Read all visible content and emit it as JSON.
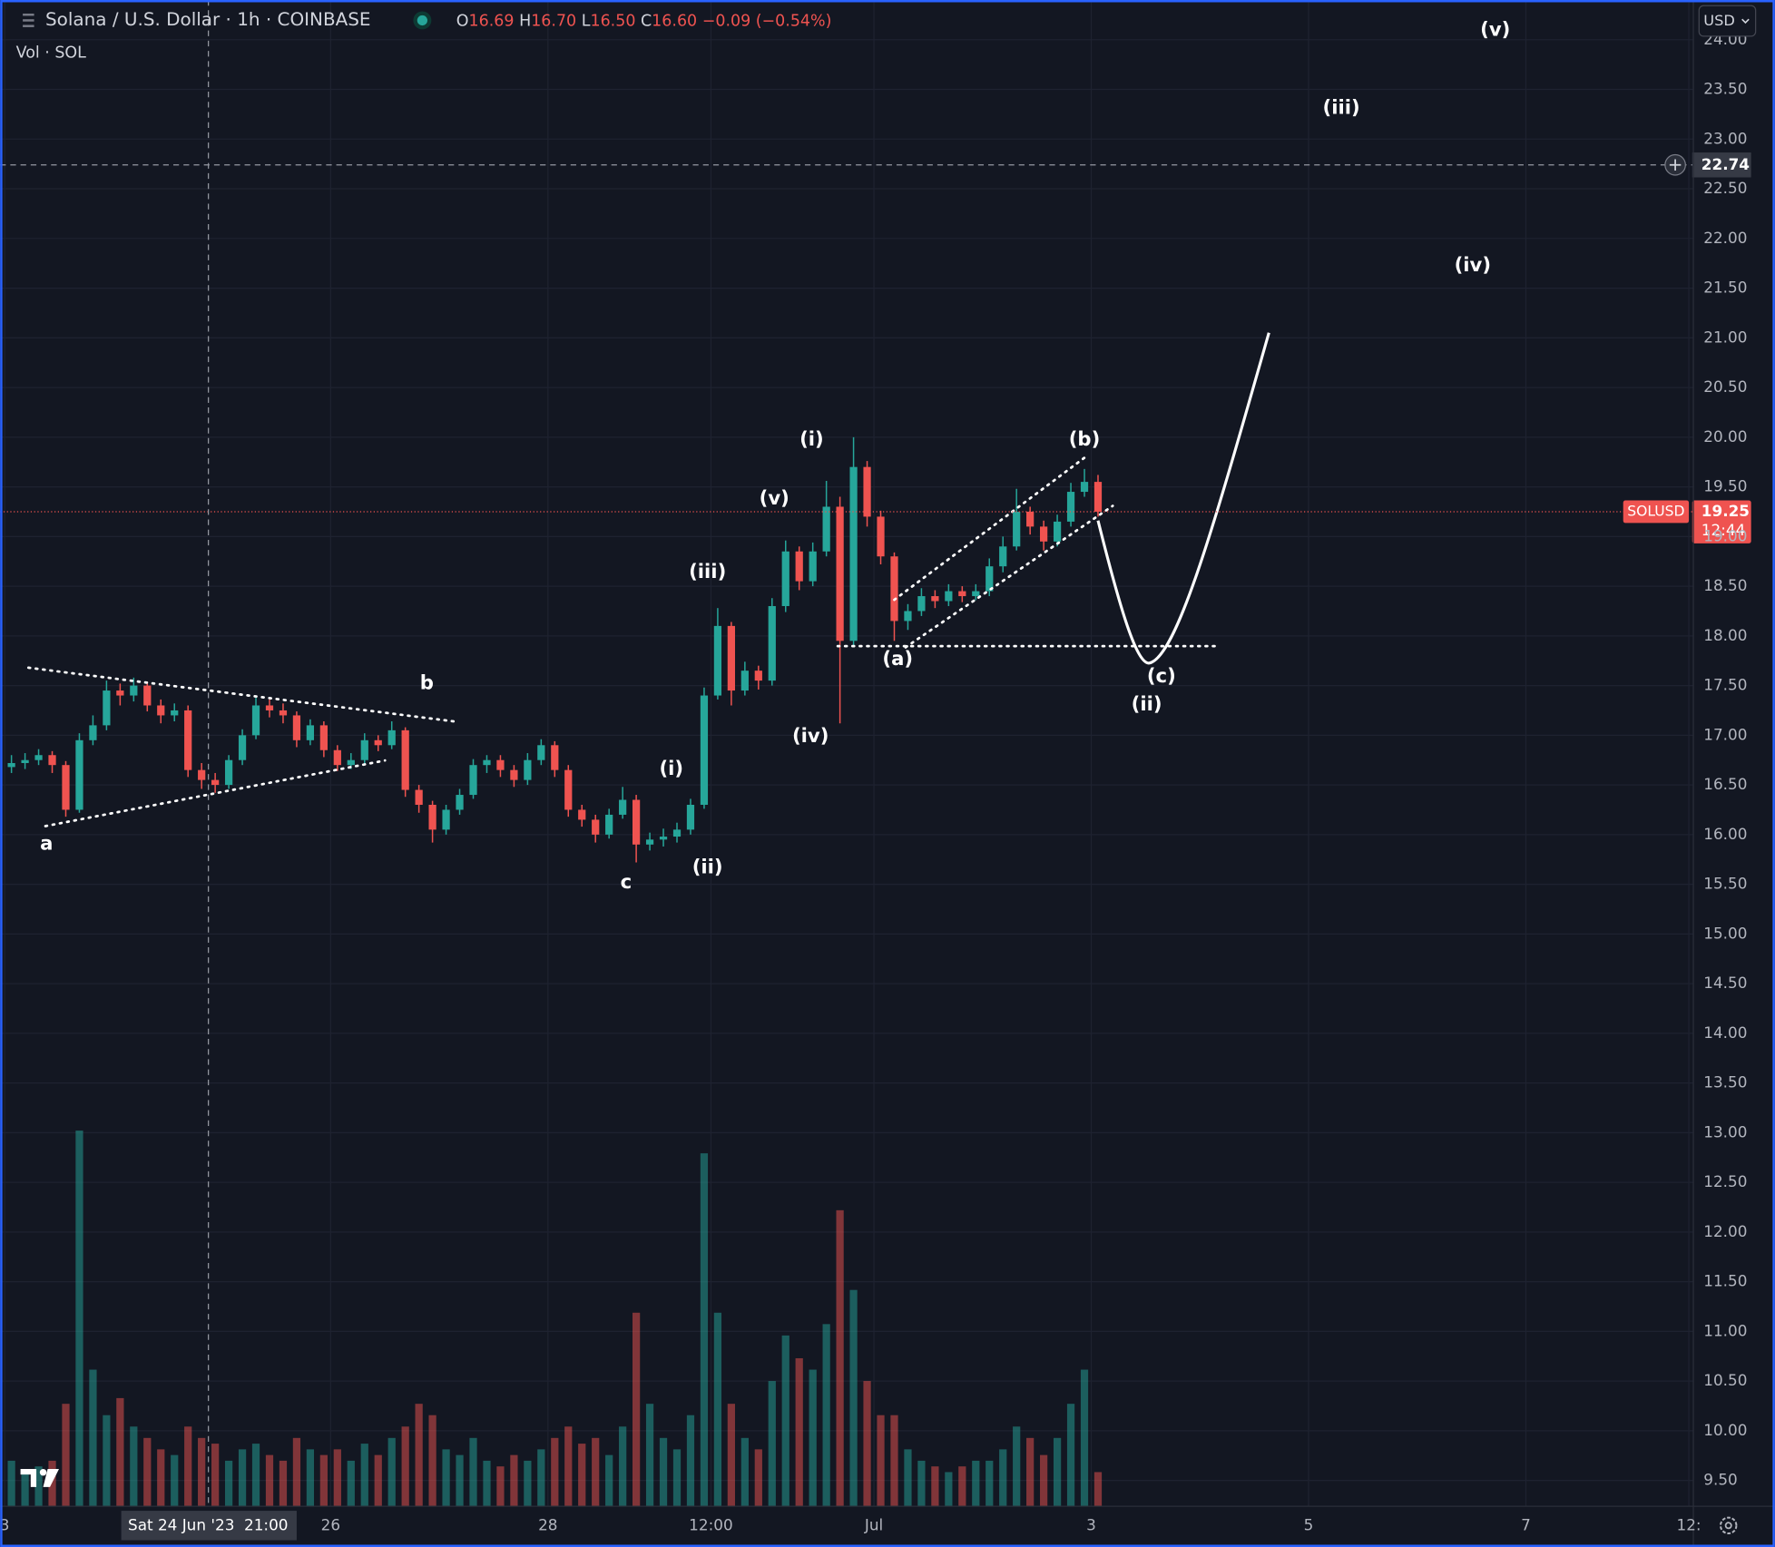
{
  "header": {
    "symbol": "Solana / U.S. Dollar · 1h · COINBASE",
    "o_label": "O",
    "open": "16.69",
    "h_label": "H",
    "high": "16.70",
    "l_label": "L",
    "low": "16.50",
    "c_label": "C",
    "close": "16.60",
    "change": "−0.09 (−0.54%)",
    "volume_label": "Vol · SOL",
    "currency": "USD"
  },
  "annotations": [
    "(v)",
    "(iii)",
    "(iv)",
    "(i)",
    "(b)",
    "(v)",
    "(iii)",
    "(a)",
    "(c)",
    "(ii)",
    "(iv)",
    "b",
    "(i)",
    "(ii)",
    "c",
    "a"
  ],
  "chart_data": {
    "type": "candlestick",
    "up_color": "#26a69a",
    "down_color": "#ef5350",
    "grid": true,
    "x": [
      1.5,
      4.5,
      7.5,
      10.5,
      13.5,
      16.5,
      19.5,
      22.5,
      25.5,
      28.5,
      31.5,
      34.5,
      37.5,
      40.5,
      43.5,
      46.5,
      49.5,
      52.5,
      55.5,
      58.5,
      61.5,
      64.5,
      67.5,
      70.5,
      73.5,
      76.5,
      79.5,
      82.5,
      85.5,
      88.5,
      91.5,
      94.5,
      97.5,
      100.5,
      103.5,
      106.5,
      109.5,
      112.5,
      115.5,
      118.5,
      121.5,
      124.5,
      127.5,
      130.5,
      133.5,
      136.5,
      139.5,
      142.5,
      145.5,
      148.5,
      151.5,
      154.5,
      157.5,
      160.5,
      163.5,
      166.5,
      169.5,
      172.5,
      175.5,
      178.5,
      181.5,
      184.5,
      187.5,
      190.5,
      193.5,
      196.5,
      199.5,
      202.5,
      205.5,
      208.5,
      211.5,
      214.5,
      217.5,
      220.5,
      223.5,
      226.5,
      229.5,
      232.5,
      235.5,
      238.5,
      241.5
    ],
    "open": [
      16.68,
      16.72,
      16.75,
      16.8,
      16.7,
      16.25,
      16.95,
      17.1,
      17.45,
      17.4,
      17.5,
      17.3,
      17.2,
      17.25,
      16.65,
      16.55,
      16.5,
      16.75,
      17.0,
      17.3,
      17.25,
      17.2,
      16.95,
      17.1,
      16.85,
      16.7,
      16.75,
      16.95,
      16.9,
      17.05,
      16.45,
      16.3,
      16.05,
      16.25,
      16.4,
      16.7,
      16.75,
      16.65,
      16.55,
      16.75,
      16.9,
      16.65,
      16.25,
      16.15,
      16.0,
      16.2,
      16.35,
      15.9,
      15.95,
      15.98,
      16.05,
      16.3,
      17.4,
      18.1,
      17.45,
      17.65,
      17.55,
      18.3,
      18.85,
      18.55,
      18.85,
      19.3,
      17.95,
      19.7,
      19.2,
      18.8,
      18.15,
      18.25,
      18.4,
      18.35,
      18.45,
      18.4,
      18.45,
      18.7,
      18.9,
      19.25,
      19.1,
      18.95,
      19.15,
      19.45,
      19.55
    ],
    "high": [
      16.8,
      16.82,
      16.86,
      16.84,
      16.74,
      17.02,
      17.2,
      17.55,
      17.52,
      17.58,
      17.54,
      17.36,
      17.32,
      17.3,
      16.72,
      16.62,
      16.8,
      17.06,
      17.38,
      17.36,
      17.32,
      17.24,
      17.16,
      17.14,
      16.9,
      16.82,
      17.02,
      17.0,
      17.14,
      17.08,
      16.5,
      16.34,
      16.3,
      16.46,
      16.76,
      16.8,
      16.8,
      16.7,
      16.82,
      16.96,
      16.94,
      16.7,
      16.3,
      16.2,
      16.26,
      16.48,
      16.4,
      16.02,
      16.06,
      16.12,
      16.36,
      17.48,
      18.28,
      18.14,
      17.74,
      17.7,
      18.38,
      18.96,
      18.9,
      18.94,
      19.56,
      19.4,
      20.0,
      19.76,
      19.26,
      18.84,
      18.32,
      18.48,
      18.46,
      18.52,
      18.5,
      18.52,
      18.78,
      19.0,
      19.48,
      19.3,
      19.16,
      19.22,
      19.54,
      19.68,
      19.62
    ],
    "low": [
      16.62,
      16.66,
      16.7,
      16.62,
      16.18,
      16.22,
      16.9,
      17.05,
      17.3,
      17.34,
      17.24,
      17.12,
      17.14,
      16.58,
      16.46,
      16.42,
      16.46,
      16.7,
      16.96,
      17.18,
      17.12,
      16.88,
      16.9,
      16.78,
      16.64,
      16.66,
      16.7,
      16.84,
      16.86,
      16.38,
      16.22,
      15.92,
      16.0,
      16.2,
      16.36,
      16.62,
      16.58,
      16.48,
      16.5,
      16.7,
      16.58,
      16.18,
      16.08,
      15.92,
      15.96,
      16.16,
      15.72,
      15.84,
      15.88,
      15.92,
      16.0,
      16.26,
      17.36,
      17.3,
      17.4,
      17.46,
      17.5,
      18.24,
      18.46,
      18.5,
      18.8,
      17.12,
      17.9,
      19.1,
      18.72,
      17.95,
      18.06,
      18.2,
      18.28,
      18.3,
      18.34,
      18.36,
      18.4,
      18.64,
      18.86,
      19.02,
      18.86,
      18.9,
      19.1,
      19.4,
      19.2
    ],
    "close": [
      16.72,
      16.75,
      16.8,
      16.7,
      16.25,
      16.95,
      17.1,
      17.45,
      17.4,
      17.5,
      17.3,
      17.2,
      17.25,
      16.65,
      16.55,
      16.5,
      16.75,
      17.0,
      17.3,
      17.25,
      17.2,
      16.95,
      17.1,
      16.85,
      16.7,
      16.75,
      16.95,
      16.9,
      17.05,
      16.45,
      16.3,
      16.05,
      16.25,
      16.4,
      16.7,
      16.75,
      16.65,
      16.55,
      16.75,
      16.9,
      16.65,
      16.25,
      16.15,
      16.0,
      16.2,
      16.35,
      15.9,
      15.95,
      15.98,
      16.05,
      16.3,
      17.4,
      18.1,
      17.45,
      17.65,
      17.55,
      18.3,
      18.85,
      18.55,
      18.85,
      19.3,
      17.95,
      19.7,
      19.2,
      18.8,
      18.15,
      18.25,
      18.4,
      18.35,
      18.45,
      18.4,
      18.45,
      18.7,
      18.9,
      19.25,
      19.1,
      18.95,
      19.15,
      19.45,
      19.55,
      19.25
    ],
    "volume": [
      40,
      30,
      35,
      40,
      90,
      330,
      120,
      80,
      95,
      70,
      60,
      50,
      45,
      70,
      60,
      55,
      40,
      50,
      55,
      45,
      40,
      60,
      50,
      45,
      50,
      40,
      55,
      45,
      60,
      70,
      90,
      80,
      50,
      45,
      60,
      40,
      35,
      45,
      40,
      50,
      60,
      70,
      55,
      60,
      45,
      70,
      170,
      90,
      60,
      50,
      80,
      310,
      170,
      90,
      60,
      50,
      110,
      150,
      130,
      120,
      160,
      260,
      190,
      110,
      80,
      80,
      50,
      40,
      35,
      30,
      35,
      40,
      40,
      50,
      70,
      60,
      45,
      60,
      90,
      120,
      30
    ],
    "xlim": [
      0,
      373
    ],
    "xticks": [
      {
        "value": 0,
        "label": "3"
      },
      {
        "value": 72,
        "label": "26"
      },
      {
        "value": 120,
        "label": "28"
      },
      {
        "value": 156,
        "label": "12:00"
      },
      {
        "value": 192,
        "label": "Jul"
      },
      {
        "value": 240,
        "label": "3"
      },
      {
        "value": 288,
        "label": "5"
      },
      {
        "value": 336,
        "label": "7"
      },
      {
        "value": 372,
        "label": "12:"
      }
    ],
    "ylim": [
      9.24,
      24.4
    ],
    "yticks": [
      {
        "value": 9.5,
        "label": "9.50"
      },
      {
        "value": 10,
        "label": "10.00"
      },
      {
        "value": 10.5,
        "label": "10.50"
      },
      {
        "value": 11,
        "label": "11.00"
      },
      {
        "value": 11.5,
        "label": "11.50"
      },
      {
        "value": 12,
        "label": "12.00"
      },
      {
        "value": 12.5,
        "label": "12.50"
      },
      {
        "value": 13,
        "label": "13.00"
      },
      {
        "value": 13.5,
        "label": "13.50"
      },
      {
        "value": 14,
        "label": "14.00"
      },
      {
        "value": 14.5,
        "label": "14.50"
      },
      {
        "value": 15,
        "label": "15.00"
      },
      {
        "value": 15.5,
        "label": "15.50"
      },
      {
        "value": 16,
        "label": "16.00"
      },
      {
        "value": 16.5,
        "label": "16.50"
      },
      {
        "value": 17,
        "label": "17.00"
      },
      {
        "value": 17.5,
        "label": "17.50"
      },
      {
        "value": 18,
        "label": "18.00"
      },
      {
        "value": 18.5,
        "label": "18.50"
      },
      {
        "value": 19,
        "label": "19.00"
      },
      {
        "value": 19.5,
        "label": "19.50"
      },
      {
        "value": 20,
        "label": "20.00"
      },
      {
        "value": 20.5,
        "label": "20.50"
      },
      {
        "value": 21,
        "label": "21.00"
      },
      {
        "value": 21.5,
        "label": "21.50"
      },
      {
        "value": 22,
        "label": "22.00"
      },
      {
        "value": 22.5,
        "label": "22.50"
      },
      {
        "value": 23,
        "label": "23.00"
      },
      {
        "value": 23.5,
        "label": "23.50"
      },
      {
        "value": 24,
        "label": "24.00"
      }
    ],
    "crosshair": {
      "y": {
        "value": 22.74,
        "label": "22.74"
      },
      "x": {
        "value": 45,
        "label": "Sat 24 Jun '23"
      },
      "time": "21:00"
    },
    "last_price": {
      "value": 19.25,
      "label": "19.25"
    },
    "ticker": "SOLUSD",
    "countdown": "12:44"
  }
}
